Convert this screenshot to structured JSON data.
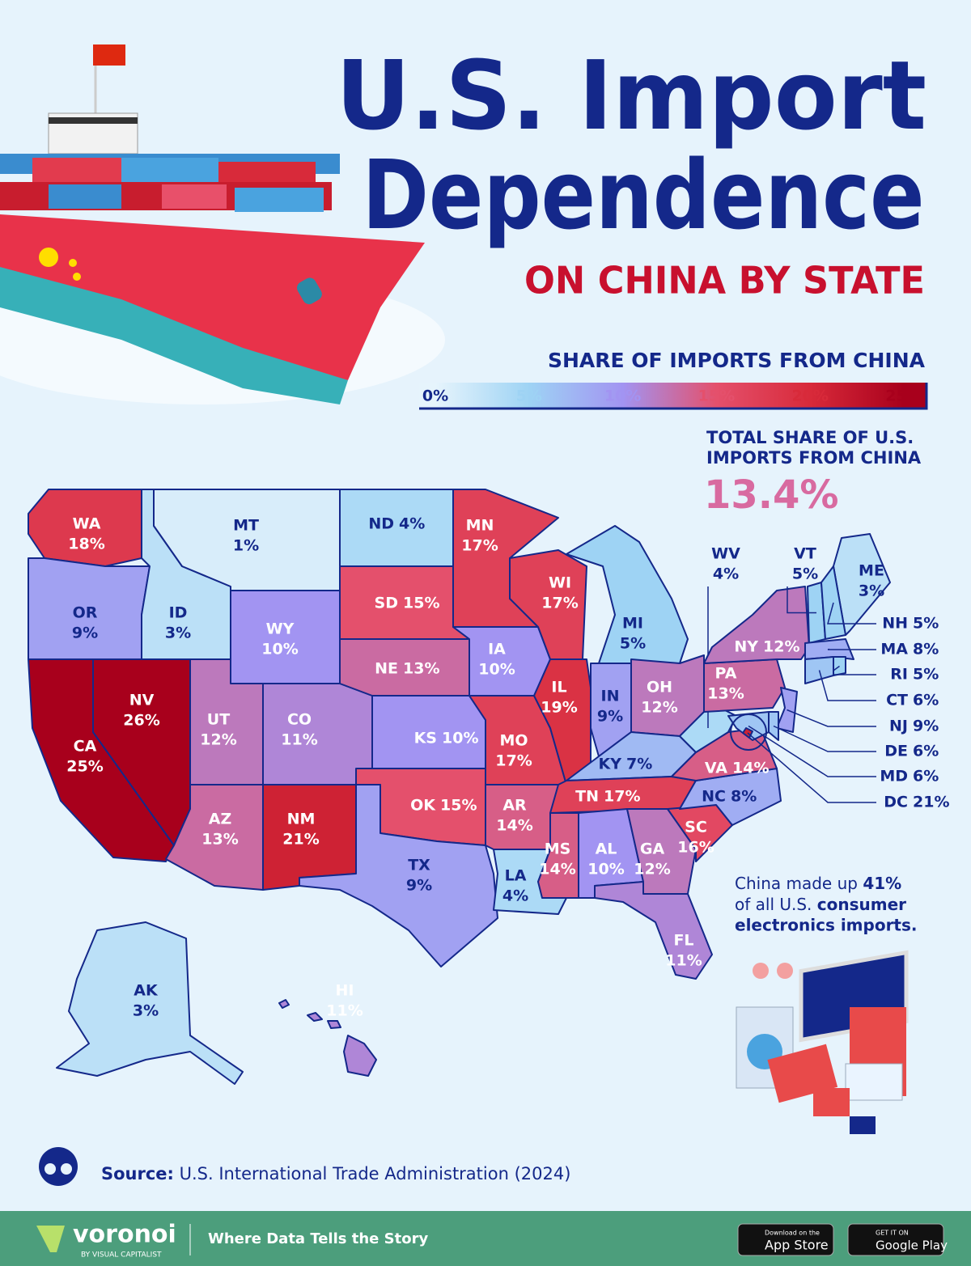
{
  "header": {
    "title_lines": [
      "U.S. Import",
      "Dependence"
    ],
    "subtitle": "ON CHINA BY STATE"
  },
  "legend": {
    "title": "SHARE OF IMPORTS FROM CHINA",
    "ticks": [
      {
        "value": 0,
        "label": "0%"
      },
      {
        "value": 5,
        "label": "5%"
      },
      {
        "value": 10,
        "label": "10%"
      },
      {
        "value": 15,
        "label": "15%"
      },
      {
        "value": 20,
        "label": "20%"
      },
      {
        "value": 25,
        "label": "25%"
      }
    ],
    "colors": [
      "#e6f4fc",
      "#9ed3f4",
      "#a294f2",
      "#e4506c",
      "#d82a3a",
      "#a8001c"
    ]
  },
  "total": {
    "label_lines": [
      "TOTAL SHARE OF U.S.",
      "IMPORTS FROM CHINA"
    ],
    "value": "13.4%"
  },
  "map": {
    "codes": [
      "WA",
      "OR",
      "CA",
      "NV",
      "ID",
      "MT",
      "WY",
      "UT",
      "CO",
      "AZ",
      "NM",
      "ND",
      "SD",
      "NE",
      "KS",
      "OK",
      "TX",
      "MN",
      "IA",
      "MO",
      "AR",
      "LA",
      "WI",
      "IL",
      "MI",
      "IN",
      "OH",
      "KY",
      "TN",
      "MS",
      "AL",
      "GA",
      "FL",
      "SC",
      "NC",
      "VA",
      "WV",
      "PA",
      "NY",
      "VT",
      "ME",
      "NH",
      "MA",
      "RI",
      "CT",
      "NJ",
      "DE",
      "MD",
      "DC",
      "AK",
      "HI"
    ],
    "values": [
      18,
      9,
      25,
      26,
      3,
      1,
      10,
      12,
      11,
      13,
      21,
      4,
      15,
      13,
      10,
      15,
      9,
      17,
      10,
      17,
      14,
      4,
      17,
      19,
      5,
      9,
      12,
      7,
      17,
      14,
      10,
      12,
      11,
      16,
      8,
      14,
      4,
      13,
      12,
      5,
      3,
      5,
      8,
      5,
      6,
      9,
      6,
      6,
      21,
      3,
      11
    ],
    "value_labels": [
      "18%",
      "9%",
      "25%",
      "26%",
      "3%",
      "1%",
      "10%",
      "12%",
      "11%",
      "13%",
      "21%",
      "4%",
      "15%",
      "13%",
      "10%",
      "15%",
      "9%",
      "17%",
      "10%",
      "17%",
      "14%",
      "4%",
      "17%",
      "19%",
      "5%",
      "9%",
      "12%",
      "7%",
      "17%",
      "14%",
      "10%",
      "12%",
      "11%",
      "16%",
      "8%",
      "14%",
      "4%",
      "13%",
      "12%",
      "5%",
      "3%",
      "5%",
      "8%",
      "5%",
      "6%",
      "9%",
      "6%",
      "6%",
      "21%",
      "3%",
      "11%"
    ]
  },
  "note": [
    "China made up",
    "41%",
    "of all U.S.",
    "consumer",
    "electronics imports."
  ],
  "source": {
    "label": "Source:",
    "text": "U.S. International Trade Administration (2024)"
  },
  "footer": {
    "brand": "voronoi",
    "brand_sub": "BY VISUAL CAPITALIST",
    "tagline": "Where Data Tells the Story",
    "app_store": [
      "Download on the",
      "App Store"
    ],
    "google_play": [
      "GET IT ON",
      "Google Play"
    ]
  }
}
